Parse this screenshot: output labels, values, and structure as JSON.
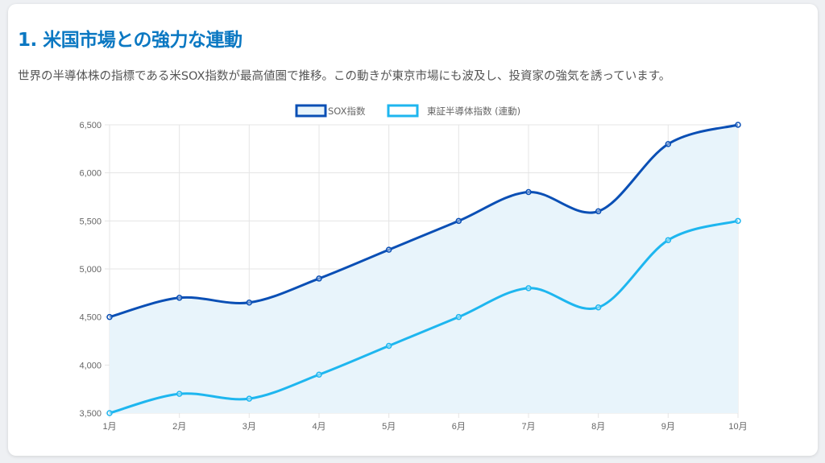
{
  "header": {
    "title": "1. 米国市場との強力な連動",
    "description": "世界の半導体株の指標である米SOX指数が最高値圏で推移。この動きが東京市場にも波及し、投資家の強気を誘っています。"
  },
  "chart_data": {
    "type": "line",
    "title": "",
    "categories": [
      "1月",
      "2月",
      "3月",
      "4月",
      "5月",
      "6月",
      "7月",
      "8月",
      "9月",
      "10月"
    ],
    "series": [
      {
        "name": "SOX指数",
        "values": [
          4500,
          4700,
          4650,
          4900,
          5200,
          5500,
          5800,
          5600,
          6300,
          6500
        ],
        "color": "#0a4fb5",
        "fill": "#e8f4fb"
      },
      {
        "name": "東証半導体指数 (連動)",
        "values": [
          3500,
          3700,
          3650,
          3900,
          4200,
          4500,
          4800,
          4600,
          5300,
          5500
        ],
        "color": "#1eb6ef"
      }
    ],
    "ylim": [
      3500,
      6500
    ],
    "yticks": [
      3500,
      4000,
      4500,
      5000,
      5500,
      6000,
      6500
    ],
    "ytick_labels": [
      "3,500",
      "4,000",
      "4,500",
      "5,000",
      "5,500",
      "6,000",
      "6,500"
    ],
    "grid": true,
    "legend": "top-center",
    "xlabel": "",
    "ylabel": ""
  }
}
